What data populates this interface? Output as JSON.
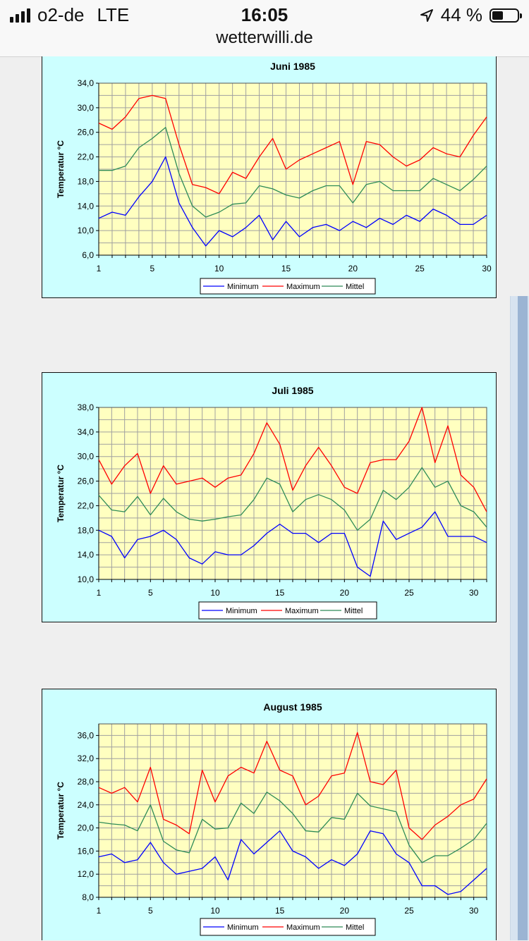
{
  "status_bar": {
    "carrier": "o2-de",
    "network": "LTE",
    "time": "16:05",
    "battery_percent": "44 %",
    "battery_level": 0.44,
    "signal_bars": 4,
    "location_icon": "location-arrow-icon"
  },
  "browser": {
    "domain": "wetterwilli.de"
  },
  "colors": {
    "panel_bg": "#ccffff",
    "plot_bg": "#ffffc0",
    "grid": "#a0a0a0",
    "minimum": "#0000ff",
    "maximum": "#ff0000",
    "mittel": "#2e8b57"
  },
  "chart_data": [
    {
      "type": "line",
      "title": "Juni 1985",
      "ylabel": "Temperatur °C",
      "xlabel": "",
      "x": [
        1,
        2,
        3,
        4,
        5,
        6,
        7,
        8,
        9,
        10,
        11,
        12,
        13,
        14,
        15,
        16,
        17,
        18,
        19,
        20,
        21,
        22,
        23,
        24,
        25,
        26,
        27,
        28,
        29,
        30
      ],
      "xlim": [
        1,
        30
      ],
      "ylim": [
        6,
        34
      ],
      "ystep": 4,
      "x_ticks": [
        1,
        5,
        10,
        15,
        20,
        25,
        30
      ],
      "grid": true,
      "legend": "bottom",
      "series": [
        {
          "name": "Minimum",
          "color": "#0000ff",
          "values": [
            12.0,
            13.0,
            12.5,
            15.5,
            18.0,
            22.0,
            14.5,
            10.5,
            7.5,
            10.0,
            9.0,
            10.5,
            12.5,
            8.5,
            11.5,
            9.0,
            10.5,
            11.0,
            10.0,
            11.5,
            10.5,
            12.0,
            11.0,
            12.5,
            11.5,
            13.5,
            12.5,
            11.0,
            11.0,
            12.5
          ]
        },
        {
          "name": "Maximum",
          "color": "#ff0000",
          "values": [
            27.5,
            26.5,
            28.5,
            31.5,
            32.0,
            31.5,
            24.0,
            17.5,
            17.0,
            16.0,
            19.5,
            18.5,
            22.0,
            25.0,
            20.0,
            21.5,
            22.5,
            23.5,
            24.5,
            17.5,
            24.5,
            24.0,
            22.0,
            20.5,
            21.5,
            23.5,
            22.5,
            22.0,
            25.5,
            28.5
          ]
        },
        {
          "name": "Mittel",
          "color": "#2e8b57",
          "values": [
            19.8,
            19.8,
            20.5,
            23.5,
            25.0,
            26.8,
            19.3,
            14.0,
            12.2,
            13.0,
            14.3,
            14.5,
            17.3,
            16.8,
            15.8,
            15.3,
            16.5,
            17.3,
            17.3,
            14.5,
            17.5,
            18.0,
            16.5,
            16.5,
            16.5,
            18.5,
            17.5,
            16.5,
            18.3,
            20.5
          ]
        }
      ],
      "legend_labels": [
        "Minimum",
        "Maximum",
        "Mittel"
      ]
    },
    {
      "type": "line",
      "title": "Juli 1985",
      "ylabel": "Temperatur °C",
      "xlabel": "",
      "x": [
        1,
        2,
        3,
        4,
        5,
        6,
        7,
        8,
        9,
        10,
        11,
        12,
        13,
        14,
        15,
        16,
        17,
        18,
        19,
        20,
        21,
        22,
        23,
        24,
        25,
        26,
        27,
        28,
        29,
        30,
        31
      ],
      "xlim": [
        1,
        31
      ],
      "ylim": [
        10,
        38
      ],
      "ystep": 4,
      "x_ticks": [
        1,
        5,
        10,
        15,
        20,
        25,
        30
      ],
      "grid": true,
      "legend": "bottom",
      "series": [
        {
          "name": "Minimum",
          "color": "#0000ff",
          "values": [
            18.0,
            17.0,
            13.5,
            16.5,
            17.0,
            18.0,
            16.5,
            13.5,
            12.5,
            14.5,
            14.0,
            14.0,
            15.5,
            17.5,
            19.0,
            17.5,
            17.5,
            16.0,
            17.5,
            17.5,
            12.0,
            10.5,
            19.5,
            16.5,
            17.5,
            18.5,
            21.0,
            17.0,
            17.0,
            17.0,
            16.0
          ]
        },
        {
          "name": "Maximum",
          "color": "#ff0000",
          "values": [
            29.5,
            25.5,
            28.5,
            30.5,
            24.0,
            28.5,
            25.5,
            26.0,
            26.5,
            25.0,
            26.5,
            27.0,
            30.5,
            35.5,
            32.0,
            24.5,
            28.5,
            31.5,
            28.5,
            25.0,
            24.0,
            29.0,
            29.5,
            29.5,
            32.5,
            38.0,
            29.0,
            35.0,
            27.0,
            25.0,
            21.0
          ]
        },
        {
          "name": "Mittel",
          "color": "#2e8b57",
          "values": [
            23.7,
            21.3,
            21.0,
            23.5,
            20.5,
            23.2,
            21.0,
            19.8,
            19.5,
            19.8,
            20.2,
            20.5,
            23.0,
            26.5,
            25.5,
            21.0,
            23.0,
            23.8,
            23.0,
            21.3,
            18.0,
            19.8,
            24.5,
            23.0,
            25.0,
            28.2,
            25.0,
            26.0,
            22.0,
            21.0,
            18.5
          ]
        }
      ],
      "legend_labels": [
        "Minimum",
        "Maximum",
        "Mittel"
      ]
    },
    {
      "type": "line",
      "title": "August 1985",
      "ylabel": "Temperatur °C",
      "xlabel": "",
      "x": [
        1,
        2,
        3,
        4,
        5,
        6,
        7,
        8,
        9,
        10,
        11,
        12,
        13,
        14,
        15,
        16,
        17,
        18,
        19,
        20,
        21,
        22,
        23,
        24,
        25,
        26,
        27,
        28,
        29,
        30,
        31
      ],
      "xlim": [
        1,
        31
      ],
      "ylim": [
        8,
        38
      ],
      "ystep": 4,
      "x_ticks": [
        1,
        5,
        10,
        15,
        20,
        25,
        30
      ],
      "grid": true,
      "legend": "bottom",
      "series": [
        {
          "name": "Minimum",
          "color": "#0000ff",
          "values": [
            15.0,
            15.5,
            14.0,
            14.5,
            17.5,
            14.0,
            12.0,
            12.5,
            13.0,
            15.0,
            11.0,
            18.0,
            15.5,
            17.5,
            19.5,
            16.0,
            15.0,
            13.0,
            14.5,
            13.5,
            15.5,
            19.5,
            19.0,
            15.5,
            14.0,
            10.0,
            10.0,
            8.5,
            9.0,
            11.0,
            13.0
          ]
        },
        {
          "name": "Maximum",
          "color": "#ff0000",
          "values": [
            27.0,
            26.0,
            27.0,
            24.5,
            30.5,
            21.5,
            20.5,
            19.0,
            30.0,
            24.5,
            29.0,
            30.5,
            29.5,
            35.0,
            30.0,
            29.0,
            24.0,
            25.5,
            29.0,
            29.5,
            36.5,
            28.0,
            27.5,
            30.0,
            20.0,
            18.0,
            20.5,
            22.0,
            24.0,
            25.0,
            28.5
          ]
        },
        {
          "name": "Mittel",
          "color": "#2e8b57",
          "values": [
            21.0,
            20.7,
            20.5,
            19.5,
            24.0,
            17.7,
            16.2,
            15.7,
            21.5,
            19.8,
            20.0,
            24.3,
            22.5,
            26.2,
            24.7,
            22.5,
            19.5,
            19.3,
            21.8,
            21.5,
            26.0,
            23.8,
            23.3,
            22.8,
            17.0,
            14.0,
            15.2,
            15.2,
            16.5,
            18.0,
            20.8
          ]
        }
      ],
      "legend_labels": [
        "Minimum",
        "Maximum",
        "Mittel"
      ]
    }
  ]
}
